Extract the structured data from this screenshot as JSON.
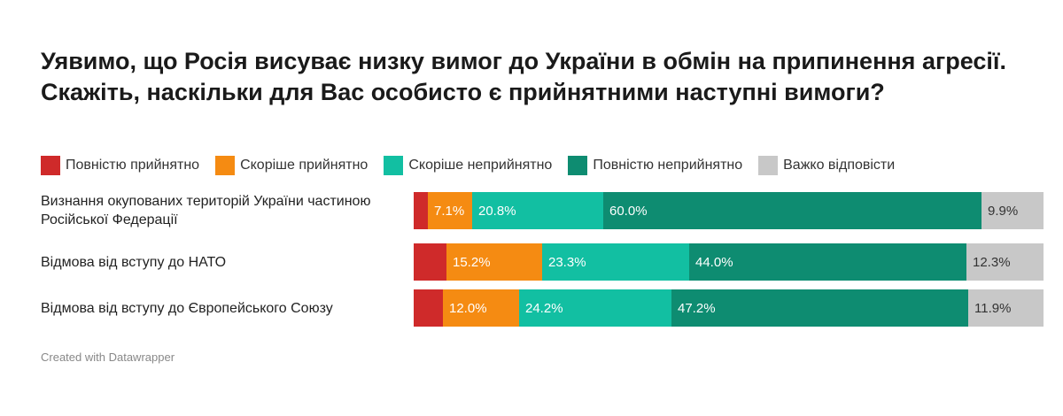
{
  "chart_data": {
    "type": "bar",
    "orientation": "horizontal-stacked-100",
    "title": "Уявимо, що Росія висуває низку вимог до України в обмін на припинення агресії. Скажіть, наскільки для Вас особисто є прийнятними наступні вимоги?",
    "legend_position": "top-left",
    "grid": false,
    "categories": [
      "Визнання окупованих територій України частиною Російської Федерації",
      "Відмова від вступу до НАТО",
      "Відмова від вступу до Європейського Союзу"
    ],
    "series": [
      {
        "name": "Повністю прийнятно",
        "color": "#cf2a2a",
        "values": [
          2.2,
          5.2,
          4.7
        ],
        "labels": [
          "",
          "",
          ""
        ]
      },
      {
        "name": "Скоріше прийнятно",
        "color": "#f58b12",
        "values": [
          7.1,
          15.2,
          12.0
        ],
        "labels": [
          "7.1%",
          "15.2%",
          "12.0%"
        ]
      },
      {
        "name": "Скоріше неприйнятно",
        "color": "#12bfa2",
        "values": [
          20.8,
          23.3,
          24.2
        ],
        "labels": [
          "20.8%",
          "23.3%",
          "24.2%"
        ]
      },
      {
        "name": "Повністю неприйнятно",
        "color": "#0e8c71",
        "values": [
          60.0,
          44.0,
          47.2
        ],
        "labels": [
          "60.0%",
          "44.0%",
          "47.2%"
        ]
      },
      {
        "name": "Важко відповісти",
        "color": "#c8c8c8",
        "values": [
          9.9,
          12.3,
          11.9
        ],
        "labels": [
          "9.9%",
          "12.3%",
          "11.9%"
        ]
      }
    ],
    "xlim": [
      0,
      100
    ]
  },
  "footer": {
    "credit": "Created with Datawrapper"
  }
}
